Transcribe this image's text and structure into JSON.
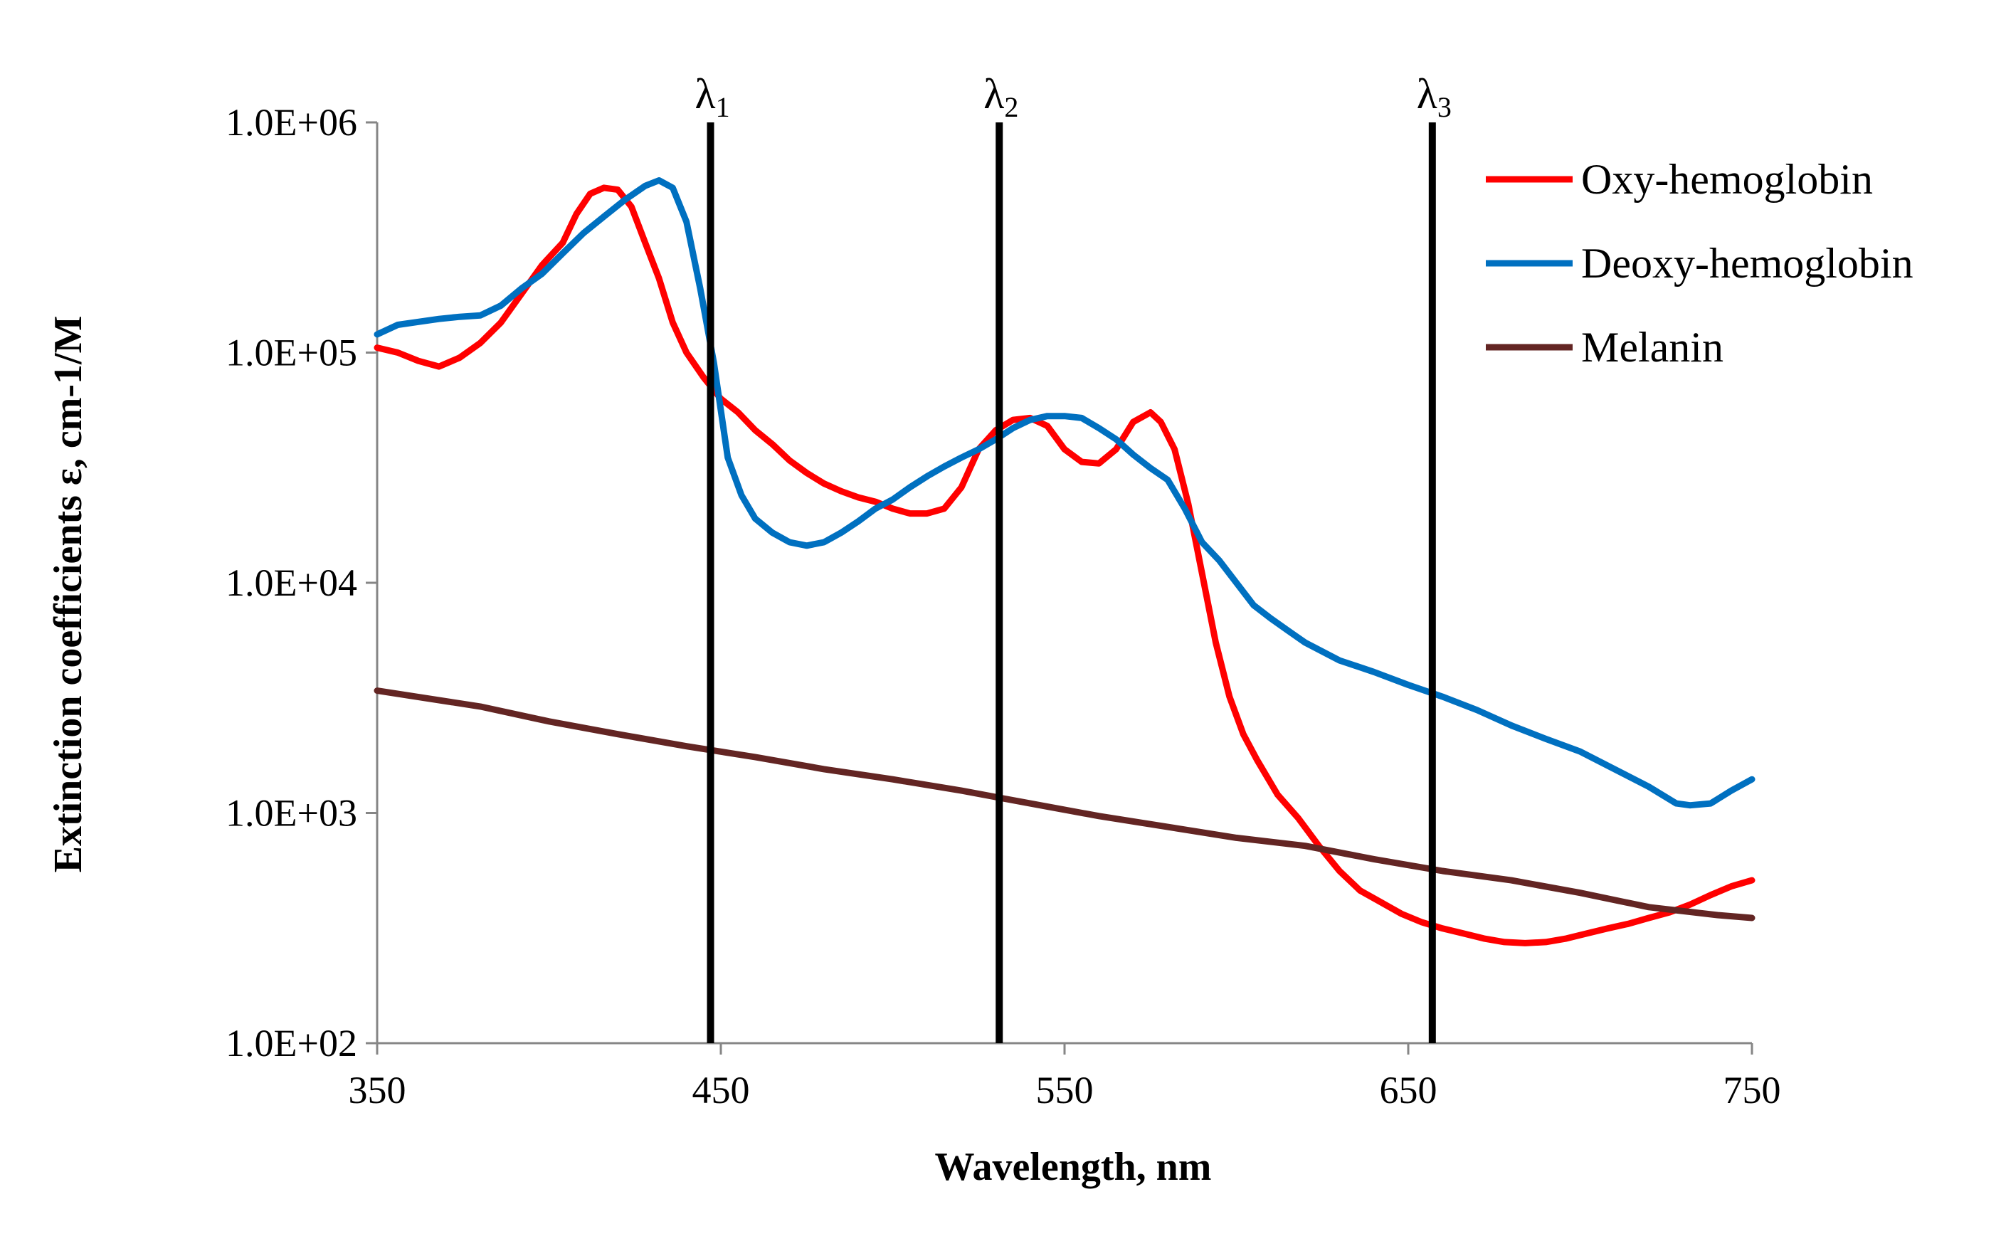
{
  "chart_data": {
    "type": "line",
    "title": "",
    "xlabel": "Wavelength, nm",
    "ylabel": "Extinction coefficients ε, cm-1/M",
    "xlim": [
      350,
      750
    ],
    "ylim": [
      100,
      1000000
    ],
    "yscale": "log",
    "xticks": [
      350,
      450,
      550,
      650,
      750
    ],
    "xtick_labels": [
      "350",
      "450",
      "550",
      "650",
      "750"
    ],
    "yticks": [
      100,
      1000,
      10000,
      100000,
      1000000
    ],
    "ytick_labels": [
      "1.0E+02",
      "1.0E+03",
      "1.0E+04",
      "1.0E+05",
      "1.0E+06"
    ],
    "grid": false,
    "legend_position": "top-right",
    "markers": [
      {
        "symbol": "λ",
        "subscript": "1",
        "x": 447
      },
      {
        "symbol": "λ",
        "subscript": "2",
        "x": 531
      },
      {
        "symbol": "λ",
        "subscript": "3",
        "x": 657
      }
    ],
    "series": [
      {
        "name": "Oxy-hemoglobin",
        "color": "#ff0000",
        "x": [
          350,
          356,
          362,
          368,
          374,
          380,
          386,
          392,
          398,
          404,
          408,
          412,
          416,
          420,
          424,
          428,
          432,
          436,
          440,
          445,
          450,
          455,
          460,
          465,
          470,
          475,
          480,
          485,
          490,
          495,
          500,
          505,
          510,
          515,
          520,
          525,
          530,
          535,
          540,
          545,
          550,
          555,
          560,
          565,
          570,
          575,
          578,
          582,
          586,
          590,
          594,
          598,
          602,
          606,
          612,
          618,
          624,
          630,
          636,
          642,
          648,
          654,
          660,
          666,
          672,
          678,
          684,
          690,
          696,
          702,
          708,
          714,
          720,
          726,
          732,
          738,
          744,
          750
        ],
        "y": [
          105000,
          100000,
          92000,
          87000,
          95000,
          110000,
          135000,
          180000,
          240000,
          300000,
          400000,
          490000,
          520000,
          510000,
          430000,
          300000,
          210000,
          135000,
          100000,
          78000,
          63000,
          55000,
          46000,
          40000,
          34000,
          30000,
          27000,
          25000,
          23500,
          22500,
          21000,
          20000,
          20000,
          21000,
          26000,
          38000,
          46000,
          51000,
          52000,
          48000,
          38000,
          33500,
          33000,
          38000,
          50000,
          55000,
          50000,
          38000,
          22000,
          11000,
          5500,
          3200,
          2200,
          1700,
          1200,
          950,
          720,
          560,
          460,
          410,
          365,
          335,
          315,
          300,
          285,
          275,
          272,
          275,
          285,
          300,
          315,
          330,
          350,
          370,
          400,
          440,
          480,
          510
        ]
      },
      {
        "name": "Deoxy-hemoglobin",
        "color": "#0070c0",
        "x": [
          350,
          356,
          362,
          368,
          374,
          380,
          386,
          392,
          398,
          404,
          410,
          416,
          422,
          428,
          432,
          436,
          440,
          444,
          448,
          452,
          456,
          460,
          465,
          470,
          475,
          480,
          485,
          490,
          495,
          500,
          505,
          510,
          515,
          520,
          525,
          530,
          535,
          540,
          545,
          550,
          555,
          560,
          565,
          570,
          575,
          580,
          585,
          590,
          595,
          600,
          605,
          610,
          615,
          620,
          630,
          640,
          650,
          660,
          670,
          680,
          690,
          700,
          710,
          720,
          728,
          732,
          738,
          744,
          750
        ],
        "y": [
          120000,
          132000,
          136000,
          140000,
          143000,
          145000,
          160000,
          190000,
          220000,
          270000,
          330000,
          390000,
          460000,
          530000,
          560000,
          520000,
          370000,
          190000,
          90000,
          35000,
          24000,
          19000,
          16500,
          15000,
          14500,
          15000,
          16500,
          18500,
          21000,
          23000,
          26000,
          29000,
          32000,
          35000,
          38000,
          42000,
          47000,
          51000,
          53000,
          53000,
          52000,
          47000,
          42000,
          36000,
          31500,
          28000,
          21000,
          15000,
          12500,
          10000,
          8000,
          7000,
          6200,
          5500,
          4600,
          4100,
          3600,
          3200,
          2800,
          2400,
          2100,
          1850,
          1550,
          1300,
          1100,
          1080,
          1100,
          1250,
          1400
        ]
      },
      {
        "name": "Melanin",
        "color": "#632523",
        "x": [
          350,
          380,
          400,
          420,
          440,
          460,
          480,
          500,
          520,
          540,
          560,
          580,
          600,
          620,
          640,
          660,
          680,
          700,
          720,
          740,
          750
        ],
        "y": [
          3400,
          2900,
          2500,
          2200,
          1950,
          1750,
          1550,
          1400,
          1250,
          1100,
          970,
          870,
          780,
          720,
          630,
          560,
          510,
          450,
          390,
          360,
          350
        ]
      }
    ]
  }
}
